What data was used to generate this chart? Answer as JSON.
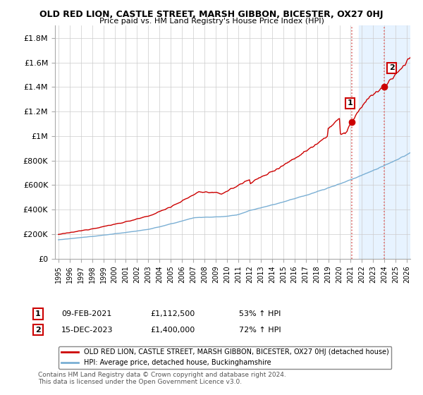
{
  "title": "OLD RED LION, CASTLE STREET, MARSH GIBBON, BICESTER, OX27 0HJ",
  "subtitle": "Price paid vs. HM Land Registry's House Price Index (HPI)",
  "ytick_values": [
    0,
    200000,
    400000,
    600000,
    800000,
    1000000,
    1200000,
    1400000,
    1600000,
    1800000
  ],
  "ylim": [
    0,
    1900000
  ],
  "red_line_label": "OLD RED LION, CASTLE STREET, MARSH GIBBON, BICESTER, OX27 0HJ (detached house)",
  "blue_line_label": "HPI: Average price, detached house, Buckinghamshire",
  "point1_date": "09-FEB-2021",
  "point1_price": "£1,112,500",
  "point1_hpi": "53% ↑ HPI",
  "point1_x": 2021.1,
  "point1_y": 1112500,
  "point2_date": "15-DEC-2023",
  "point2_price": "£1,400,000",
  "point2_hpi": "72% ↑ HPI",
  "point2_x": 2023.96,
  "point2_y": 1400000,
  "footnote": "Contains HM Land Registry data © Crown copyright and database right 2024.\nThis data is licensed under the Open Government Licence v3.0.",
  "background_color": "#ffffff",
  "grid_color": "#cccccc",
  "red_color": "#cc0000",
  "blue_color": "#7aafd4",
  "shaded_color": "#ddeeff",
  "vline_color": "#dd6666",
  "shade_start": 2021.75,
  "xlim_left": 1994.7,
  "xlim_right": 2026.3
}
